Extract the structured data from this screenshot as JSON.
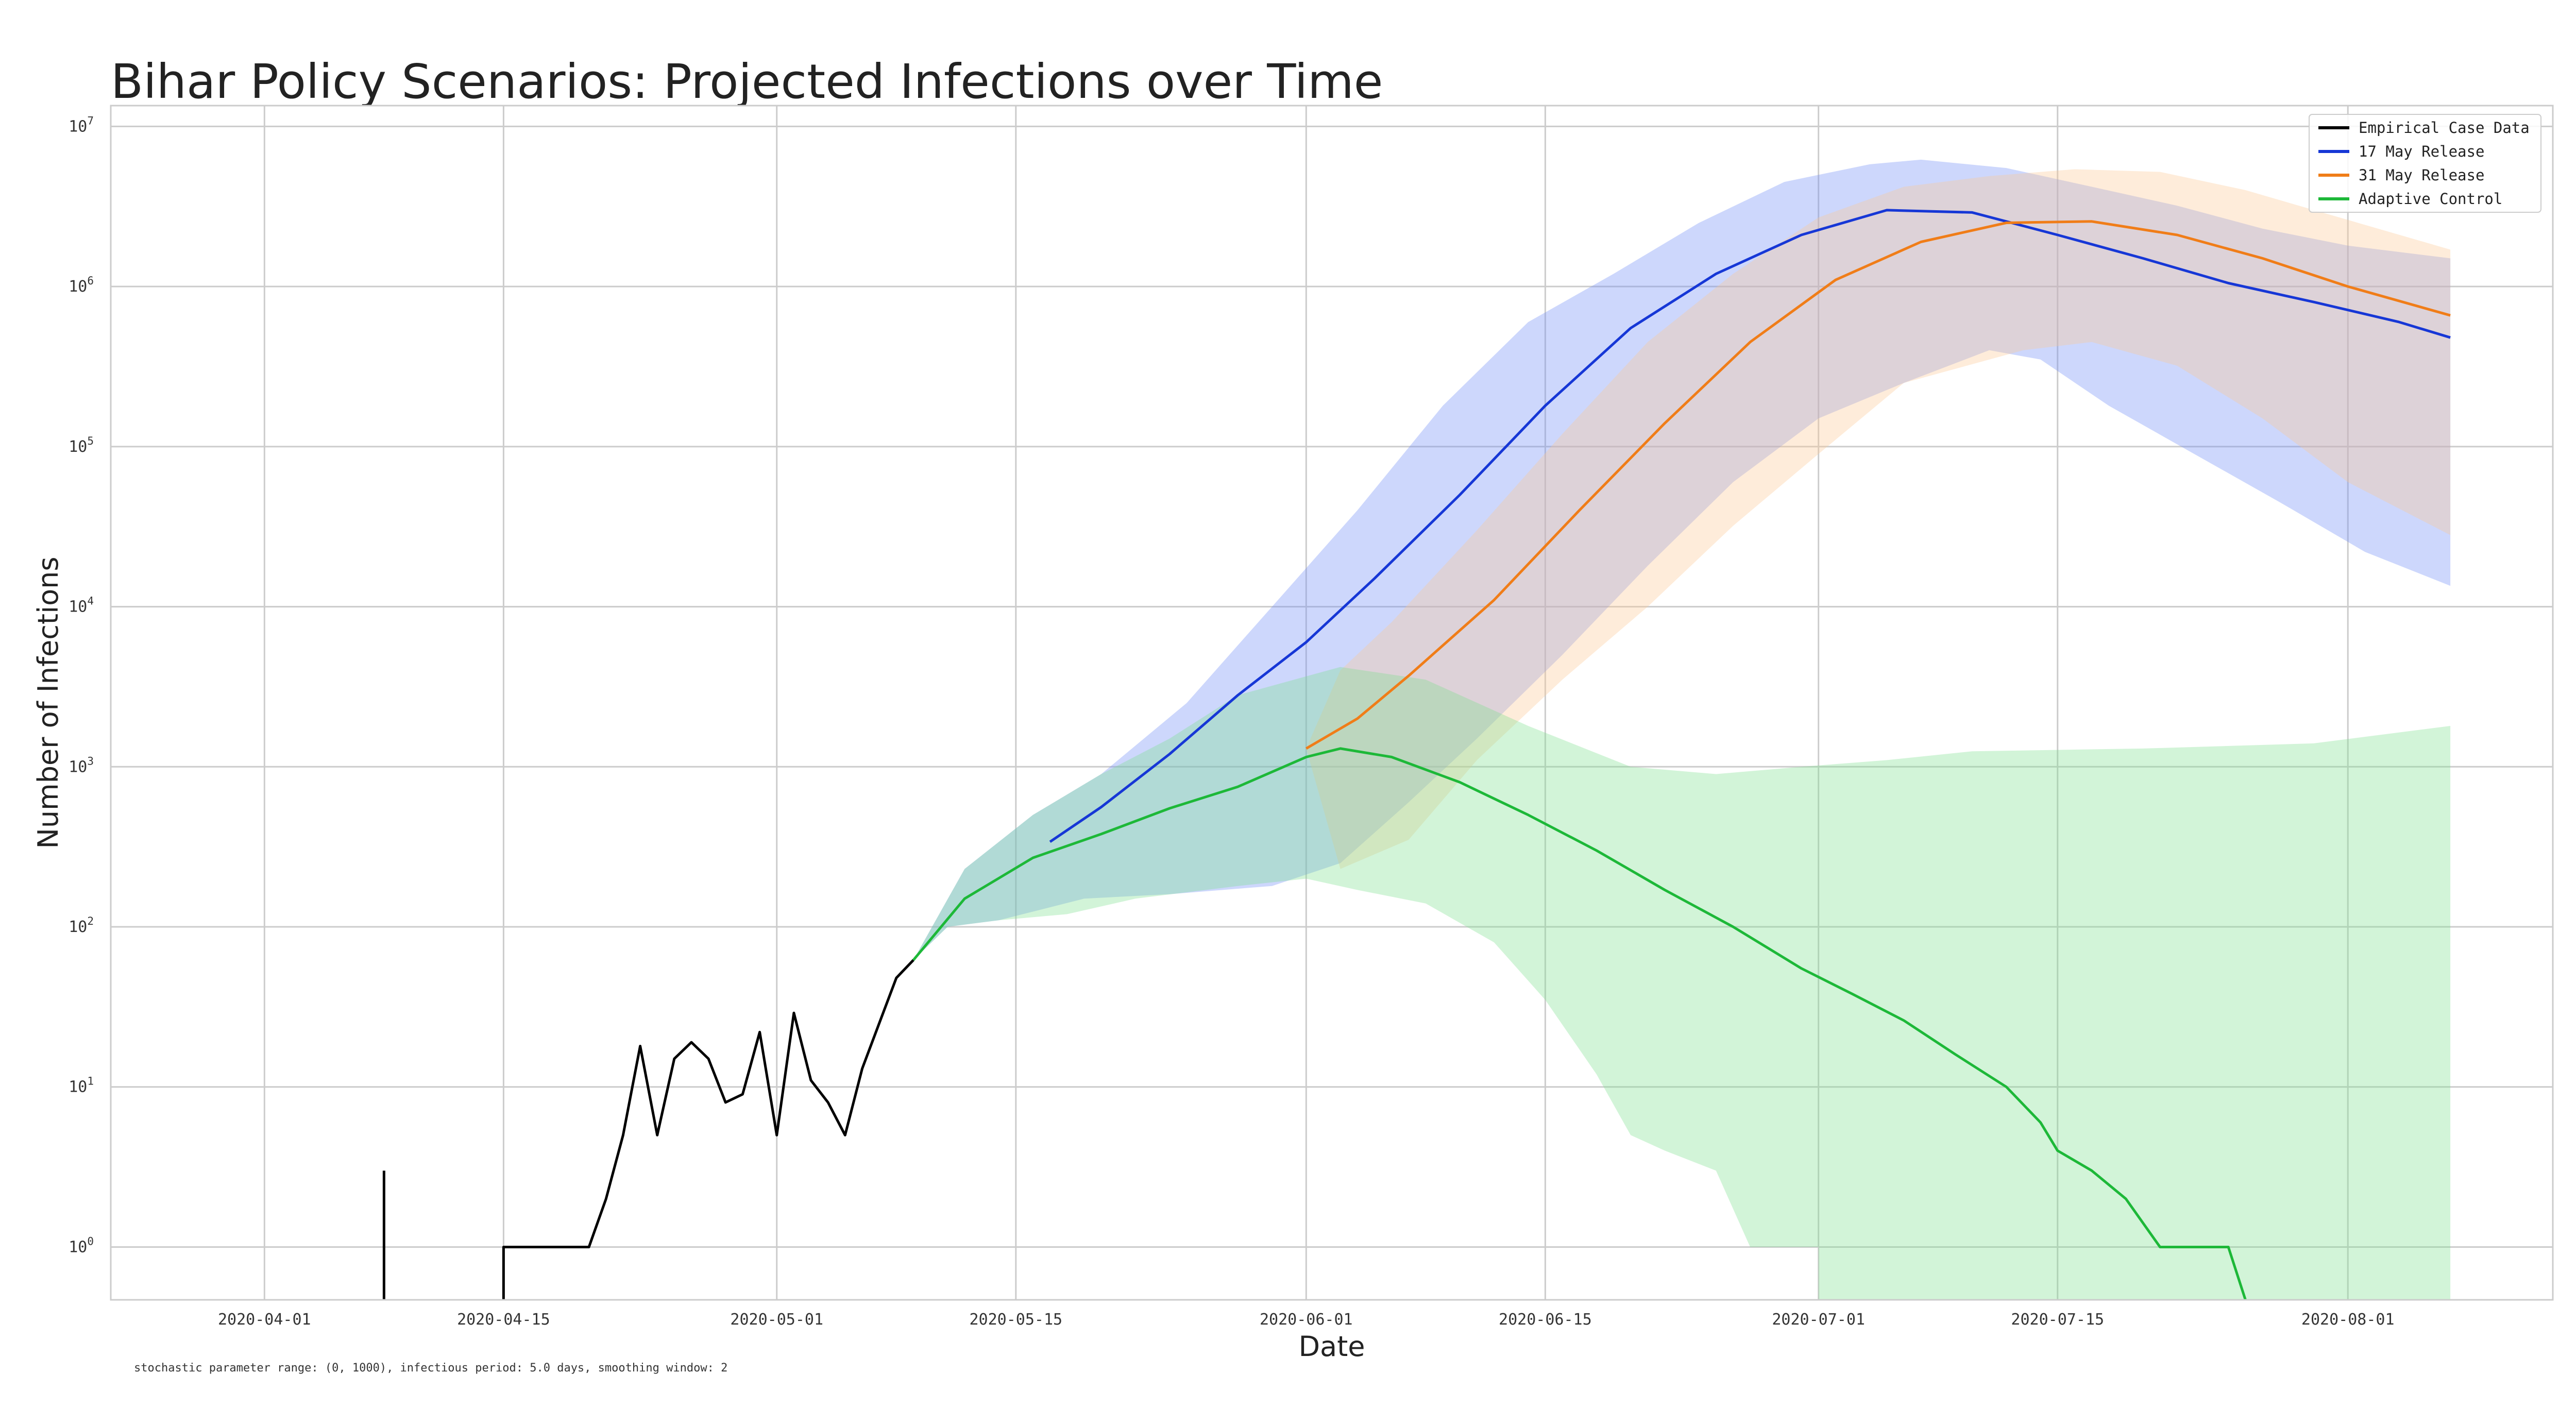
{
  "chart_data": {
    "type": "line",
    "title": "Bihar Policy Scenarios: Projected Infections over Time",
    "xlabel": "Date",
    "ylabel": "Number of Infections",
    "footnote": "stochastic parameter range: (0, 1000), infectious period: 5.0 days, smoothing window: 2",
    "yscale": "log",
    "xlim": [
      "2020-03-23",
      "2020-08-13"
    ],
    "ylim_exp": [
      -0.33,
      7.13
    ],
    "grid": true,
    "legend_position": "top-right",
    "x_ticks": [
      "2020-04-01",
      "2020-04-15",
      "2020-05-01",
      "2020-05-15",
      "2020-06-01",
      "2020-06-15",
      "2020-07-01",
      "2020-07-15",
      "2020-08-01"
    ],
    "y_tick_exponents": [
      0,
      1,
      2,
      3,
      4,
      5,
      6,
      7
    ],
    "y_tick_base": "10",
    "series": [
      {
        "name": "Empirical Case Data",
        "color": "#000000",
        "points": [
          [
            "2020-04-08",
            3
          ],
          [
            "2020-04-15",
            1
          ],
          [
            "2020-04-20",
            1
          ],
          [
            "2020-04-21",
            2
          ],
          [
            "2020-04-22",
            5
          ],
          [
            "2020-04-23",
            18
          ],
          [
            "2020-04-24",
            5
          ],
          [
            "2020-04-25",
            15
          ],
          [
            "2020-04-26",
            19
          ],
          [
            "2020-04-27",
            15
          ],
          [
            "2020-04-28",
            8
          ],
          [
            "2020-04-29",
            9
          ],
          [
            "2020-04-30",
            22
          ],
          [
            "2020-05-01",
            5
          ],
          [
            "2020-05-02",
            29
          ],
          [
            "2020-05-03",
            11
          ],
          [
            "2020-05-04",
            8
          ],
          [
            "2020-05-05",
            5
          ],
          [
            "2020-05-06",
            13
          ],
          [
            "2020-05-07",
            25
          ],
          [
            "2020-05-08",
            48
          ],
          [
            "2020-05-09",
            62
          ]
        ]
      },
      {
        "name": "17 May Release",
        "color": "#1637d6",
        "band_color": "#6f8cf5",
        "points": [
          [
            "2020-05-17",
            340
          ],
          [
            "2020-05-20",
            560
          ],
          [
            "2020-05-24",
            1200
          ],
          [
            "2020-05-28",
            2800
          ],
          [
            "2020-06-01",
            6000
          ],
          [
            "2020-06-05",
            15000
          ],
          [
            "2020-06-10",
            50000
          ],
          [
            "2020-06-15",
            180000
          ],
          [
            "2020-06-20",
            550000
          ],
          [
            "2020-06-25",
            1200000
          ],
          [
            "2020-06-30",
            2100000
          ],
          [
            "2020-07-05",
            3000000
          ],
          [
            "2020-07-10",
            2900000
          ],
          [
            "2020-07-15",
            2100000
          ],
          [
            "2020-07-20",
            1500000
          ],
          [
            "2020-07-25",
            1050000
          ],
          [
            "2020-07-30",
            800000
          ],
          [
            "2020-08-04",
            600000
          ],
          [
            "2020-08-07",
            480000
          ]
        ],
        "band_upper": [
          [
            "2020-05-09",
            62
          ],
          [
            "2020-05-12",
            230
          ],
          [
            "2020-05-16",
            500
          ],
          [
            "2020-05-20",
            900
          ],
          [
            "2020-05-25",
            2500
          ],
          [
            "2020-05-30",
            10000
          ],
          [
            "2020-06-04",
            40000
          ],
          [
            "2020-06-09",
            180000
          ],
          [
            "2020-06-14",
            600000
          ],
          [
            "2020-06-19",
            1200000
          ],
          [
            "2020-06-24",
            2500000
          ],
          [
            "2020-06-29",
            4500000
          ],
          [
            "2020-07-04",
            5800000
          ],
          [
            "2020-07-07",
            6200000
          ],
          [
            "2020-07-12",
            5500000
          ],
          [
            "2020-07-17",
            4200000
          ],
          [
            "2020-07-22",
            3200000
          ],
          [
            "2020-07-27",
            2300000
          ],
          [
            "2020-08-01",
            1800000
          ],
          [
            "2020-08-07",
            1500000
          ]
        ],
        "band_lower": [
          [
            "2020-08-07",
            13500
          ],
          [
            "2020-08-02",
            22000
          ],
          [
            "2020-07-28",
            45000
          ],
          [
            "2020-07-23",
            90000
          ],
          [
            "2020-07-18",
            180000
          ],
          [
            "2020-07-14",
            350000
          ],
          [
            "2020-07-11",
            400000
          ],
          [
            "2020-07-06",
            250000
          ],
          [
            "2020-07-01",
            150000
          ],
          [
            "2020-06-26",
            60000
          ],
          [
            "2020-06-21",
            18000
          ],
          [
            "2020-06-16",
            5000
          ],
          [
            "2020-06-11",
            1500
          ],
          [
            "2020-06-07",
            600
          ],
          [
            "2020-06-03",
            250
          ],
          [
            "2020-05-30",
            180
          ],
          [
            "2020-05-24",
            160
          ],
          [
            "2020-05-19",
            150
          ],
          [
            "2020-05-14",
            110
          ],
          [
            "2020-05-11",
            100
          ],
          [
            "2020-05-09",
            62
          ]
        ]
      },
      {
        "name": "31 May Release",
        "color": "#f07d18",
        "band_color": "#fcc994",
        "points": [
          [
            "2020-06-01",
            1300
          ],
          [
            "2020-06-04",
            2000
          ],
          [
            "2020-06-07",
            3700
          ],
          [
            "2020-06-12",
            11000
          ],
          [
            "2020-06-17",
            40000
          ],
          [
            "2020-06-22",
            140000
          ],
          [
            "2020-06-27",
            450000
          ],
          [
            "2020-07-02",
            1100000
          ],
          [
            "2020-07-07",
            1900000
          ],
          [
            "2020-07-12",
            2500000
          ],
          [
            "2020-07-17",
            2550000
          ],
          [
            "2020-07-22",
            2100000
          ],
          [
            "2020-07-27",
            1500000
          ],
          [
            "2020-08-01",
            1000000
          ],
          [
            "2020-08-07",
            660000
          ]
        ],
        "band_upper": [
          [
            "2020-06-01",
            1300
          ],
          [
            "2020-06-03",
            4000
          ],
          [
            "2020-06-06",
            8000
          ],
          [
            "2020-06-11",
            30000
          ],
          [
            "2020-06-16",
            120000
          ],
          [
            "2020-06-21",
            450000
          ],
          [
            "2020-06-26",
            1200000
          ],
          [
            "2020-07-01",
            2700000
          ],
          [
            "2020-07-06",
            4200000
          ],
          [
            "2020-07-11",
            4900000
          ],
          [
            "2020-07-16",
            5400000
          ],
          [
            "2020-07-21",
            5200000
          ],
          [
            "2020-07-26",
            4000000
          ],
          [
            "2020-07-31",
            2800000
          ],
          [
            "2020-08-07",
            1700000
          ]
        ],
        "band_lower": [
          [
            "2020-08-07",
            28000
          ],
          [
            "2020-08-01",
            60000
          ],
          [
            "2020-07-27",
            150000
          ],
          [
            "2020-07-22",
            320000
          ],
          [
            "2020-07-17",
            450000
          ],
          [
            "2020-07-13",
            400000
          ],
          [
            "2020-07-06",
            250000
          ],
          [
            "2020-07-01",
            90000
          ],
          [
            "2020-06-26",
            32000
          ],
          [
            "2020-06-21",
            10000
          ],
          [
            "2020-06-16",
            3500
          ],
          [
            "2020-06-11",
            1100
          ],
          [
            "2020-06-07",
            350
          ],
          [
            "2020-06-03",
            230
          ],
          [
            "2020-06-01",
            1300
          ]
        ]
      },
      {
        "name": "Adaptive Control",
        "color": "#1db838",
        "band_color": "#7fe08e",
        "points": [
          [
            "2020-05-09",
            62
          ],
          [
            "2020-05-12",
            150
          ],
          [
            "2020-05-16",
            270
          ],
          [
            "2020-05-20",
            380
          ],
          [
            "2020-05-24",
            550
          ],
          [
            "2020-05-28",
            750
          ],
          [
            "2020-06-01",
            1150
          ],
          [
            "2020-06-03",
            1300
          ],
          [
            "2020-06-06",
            1150
          ],
          [
            "2020-06-10",
            800
          ],
          [
            "2020-06-14",
            500
          ],
          [
            "2020-06-18",
            300
          ],
          [
            "2020-06-22",
            170
          ],
          [
            "2020-06-26",
            100
          ],
          [
            "2020-06-30",
            55
          ],
          [
            "2020-07-03",
            38
          ],
          [
            "2020-07-06",
            26
          ],
          [
            "2020-07-09",
            16
          ],
          [
            "2020-07-12",
            10
          ],
          [
            "2020-07-14",
            6
          ],
          [
            "2020-07-15",
            4
          ],
          [
            "2020-07-17",
            3
          ],
          [
            "2020-07-19",
            2
          ],
          [
            "2020-07-21",
            1
          ],
          [
            "2020-07-25",
            1
          ],
          [
            "2020-07-26",
            0.3
          ]
        ],
        "band_upper": [
          [
            "2020-05-09",
            62
          ],
          [
            "2020-05-12",
            230
          ],
          [
            "2020-05-16",
            500
          ],
          [
            "2020-05-20",
            900
          ],
          [
            "2020-05-24",
            1500
          ],
          [
            "2020-05-28",
            2800
          ],
          [
            "2020-06-03",
            4200
          ],
          [
            "2020-06-08",
            3500
          ],
          [
            "2020-06-14",
            1800
          ],
          [
            "2020-06-20",
            1000
          ],
          [
            "2020-06-25",
            900
          ],
          [
            "2020-06-30",
            1000
          ],
          [
            "2020-07-05",
            1100
          ],
          [
            "2020-07-10",
            1250
          ],
          [
            "2020-07-20",
            1300
          ],
          [
            "2020-07-30",
            1400
          ],
          [
            "2020-08-07",
            1800
          ]
        ],
        "band_lower": [
          [
            "2020-08-07",
            0.3
          ],
          [
            "2020-07-01",
            0.3
          ],
          [
            "2020-07-01",
            1
          ],
          [
            "2020-06-27",
            1
          ],
          [
            "2020-06-25",
            3
          ],
          [
            "2020-06-22",
            4
          ],
          [
            "2020-06-20",
            5
          ],
          [
            "2020-06-18",
            12
          ],
          [
            "2020-06-15",
            35
          ],
          [
            "2020-06-12",
            80
          ],
          [
            "2020-06-08",
            140
          ],
          [
            "2020-06-04",
            170
          ],
          [
            "2020-06-01",
            200
          ],
          [
            "2020-05-28",
            180
          ],
          [
            "2020-05-22",
            150
          ],
          [
            "2020-05-18",
            120
          ],
          [
            "2020-05-14",
            110
          ],
          [
            "2020-05-11",
            100
          ],
          [
            "2020-05-09",
            62
          ]
        ]
      }
    ]
  }
}
